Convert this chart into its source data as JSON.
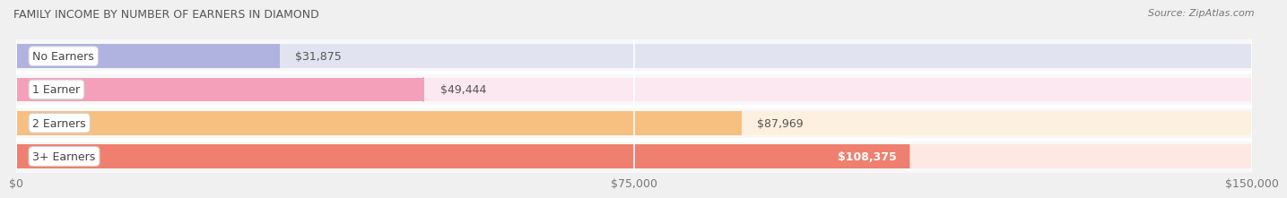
{
  "title": "FAMILY INCOME BY NUMBER OF EARNERS IN DIAMOND",
  "source": "Source: ZipAtlas.com",
  "categories": [
    "No Earners",
    "1 Earner",
    "2 Earners",
    "3+ Earners"
  ],
  "values": [
    31875,
    49444,
    87969,
    108375
  ],
  "bar_colors": [
    "#b0b3df",
    "#f5a0ba",
    "#f8c080",
    "#ef8070"
  ],
  "bar_bg_colors": [
    "#e2e3f0",
    "#fce8f0",
    "#fef0e0",
    "#fde8e4"
  ],
  "value_labels": [
    "$31,875",
    "$49,444",
    "$87,969",
    "$108,375"
  ],
  "value_inside": [
    false,
    false,
    false,
    true
  ],
  "xlim": [
    0,
    150000
  ],
  "xticks": [
    0,
    75000,
    150000
  ],
  "xtick_labels": [
    "$0",
    "$75,000",
    "$150,000"
  ],
  "background_color": "#f0f0f0",
  "plot_bg_color": "#f8f8f8",
  "bar_height": 0.72,
  "title_fontsize": 9,
  "source_fontsize": 8,
  "label_fontsize": 9,
  "value_fontsize": 9
}
